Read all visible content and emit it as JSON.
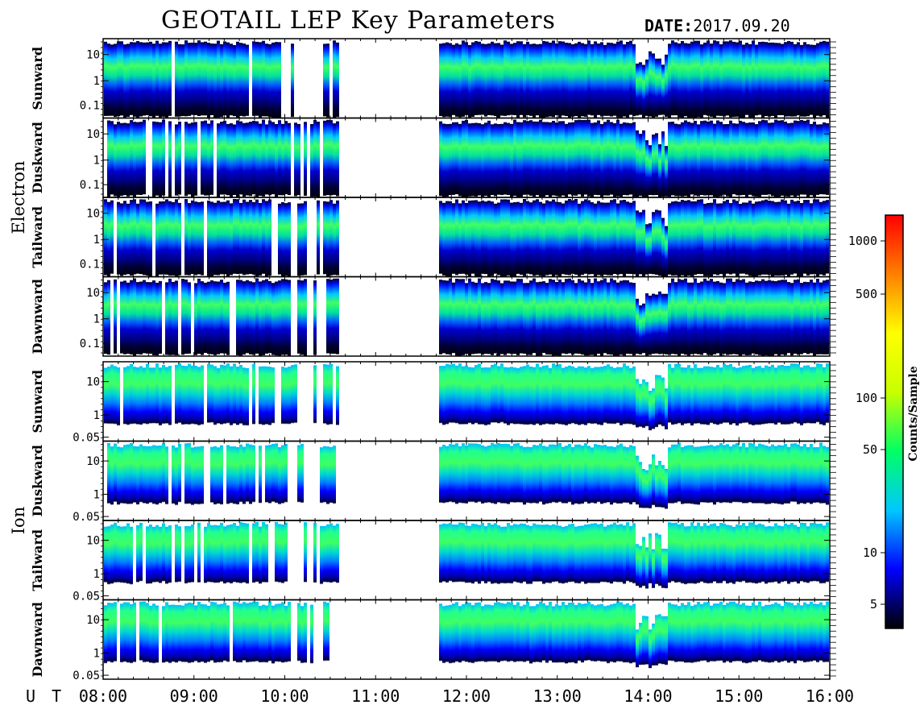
{
  "header": {
    "title": "GEOTAIL LEP Key Parameters",
    "date_label": "DATE:",
    "date_value": "2017.09.20"
  },
  "chart_data": {
    "type": "heatmap",
    "title": "GEOTAIL LEP Key Parameters",
    "x_axis": {
      "label": "U T",
      "range": [
        "08:00",
        "16:00"
      ],
      "tick_labels": [
        "08:00",
        "09:00",
        "10:00",
        "11:00",
        "12:00",
        "13:00",
        "14:00",
        "15:00",
        "16:00"
      ],
      "minor_ticks_per_hour": 6
    },
    "data_gaps": [
      [
        "10:34",
        "11:40"
      ]
    ],
    "groups": [
      {
        "name": "Electron",
        "y_scale": "log",
        "y_tick_labels": [
          "10",
          "1",
          "0.1"
        ],
        "panels": [
          {
            "name": "Sunward"
          },
          {
            "name": "Duskward"
          },
          {
            "name": "Tailward"
          },
          {
            "name": "Dawnward"
          }
        ]
      },
      {
        "name": "Ion",
        "y_scale": "log",
        "y_tick_labels": [
          "10",
          "1",
          "0.05"
        ],
        "panels": [
          {
            "name": "Sunward"
          },
          {
            "name": "Duskward"
          },
          {
            "name": "Tailward"
          },
          {
            "name": "Dawnward"
          }
        ]
      }
    ],
    "colorbar": {
      "label": "Counts/Sample",
      "scale": "log",
      "tick_labels": [
        "1000",
        "500",
        "100",
        "50",
        "10",
        "5"
      ],
      "colormap": [
        "#000000",
        "#0000ff",
        "#00c8ff",
        "#00ff64",
        "#c8ff00",
        "#ffff00",
        "#ff8000",
        "#ff0000"
      ]
    }
  }
}
